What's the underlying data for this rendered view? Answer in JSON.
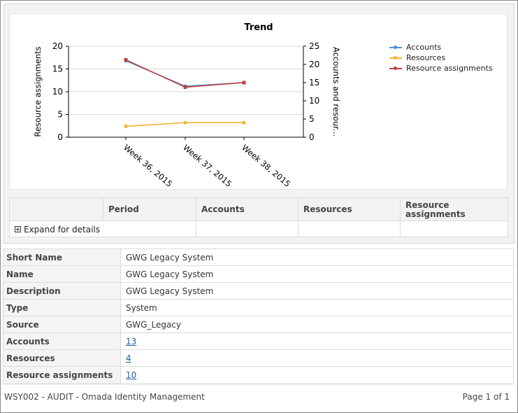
{
  "chart_data": {
    "type": "line",
    "title": "Trend",
    "categories": [
      "Week 36, 2015",
      "Week 37, 2015",
      "Week 38, 2015"
    ],
    "ylabel": "Resource assignments",
    "ylabel_right": "Accounts and resour...",
    "ylim": [
      0,
      20
    ],
    "ylim_right": [
      0,
      25
    ],
    "yticks": [
      "0",
      "5",
      "10",
      "15",
      "20"
    ],
    "yticks_right": [
      "0",
      "5",
      "10",
      "15",
      "20",
      "25"
    ],
    "grid": true,
    "legend_position": "top-right",
    "series": [
      {
        "name": "Accounts",
        "axis": "right",
        "color": "#4a8fe0",
        "values": [
          21,
          14,
          15
        ]
      },
      {
        "name": "Resources",
        "axis": "right",
        "color": "#f5b335",
        "values": [
          3,
          4,
          4
        ]
      },
      {
        "name": "Resource assignments",
        "axis": "left",
        "color": "#c0413a",
        "values": [
          17,
          11,
          12
        ]
      }
    ]
  },
  "summary": {
    "headers": [
      "Period",
      "Accounts",
      "Resources",
      "Resource\nassignments"
    ],
    "expand_label": "Expand for details"
  },
  "details": [
    {
      "label": "Short Name",
      "value": "GWG Legacy System",
      "link": false
    },
    {
      "label": "Name",
      "value": "GWG Legacy System",
      "link": false
    },
    {
      "label": "Description",
      "value": "GWG Legacy System",
      "link": false
    },
    {
      "label": "Type",
      "value": "System",
      "link": false
    },
    {
      "label": "Source",
      "value": "GWG_Legacy",
      "link": false
    },
    {
      "label": "Accounts",
      "value": "13",
      "link": true
    },
    {
      "label": "Resources",
      "value": "4",
      "link": true
    },
    {
      "label": "Resource assignments",
      "value": "10",
      "link": true
    }
  ],
  "footer": {
    "left": "WSY002 - AUDIT - Omada Identity Management",
    "right": "Page 1 of 1"
  }
}
